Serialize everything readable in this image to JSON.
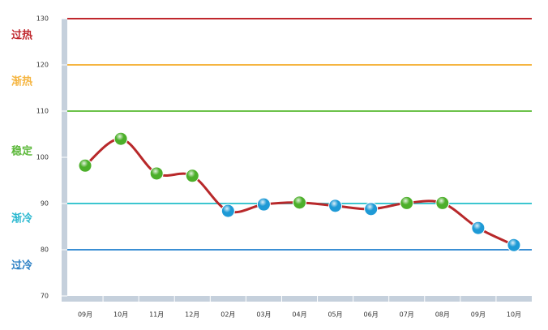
{
  "chart_data": {
    "type": "line",
    "categories": [
      "09月",
      "10月",
      "11月",
      "12月",
      "02月",
      "03月",
      "04月",
      "05月",
      "06月",
      "07月",
      "08月",
      "09月",
      "10月"
    ],
    "series": [
      {
        "color": "#b8282a",
        "values": [
          98.2,
          104,
          96.5,
          96,
          88.4,
          89.8,
          90.2,
          89.5,
          88.8,
          90.1,
          90.1,
          84.7,
          81
        ],
        "marker_colors": [
          "#4caf2a",
          "#4caf2a",
          "#4caf2a",
          "#4caf2a",
          "#1e9ad6",
          "#1e9ad6",
          "#4caf2a",
          "#1e9ad6",
          "#1e9ad6",
          "#4caf2a",
          "#4caf2a",
          "#1e9ad6",
          "#1e9ad6"
        ]
      }
    ],
    "ylim": [
      70,
      130
    ],
    "yticks": [
      70,
      80,
      90,
      100,
      110,
      120,
      130
    ],
    "reference_lines": [
      {
        "value": 130,
        "color": "#c0272d"
      },
      {
        "value": 120,
        "color": "#f5b541"
      },
      {
        "value": 110,
        "color": "#6cc24a"
      },
      {
        "value": 90,
        "color": "#3cc6d0"
      },
      {
        "value": 80,
        "color": "#3a8fd4"
      }
    ],
    "zones": [
      {
        "label": "过热",
        "color": "#c0272d"
      },
      {
        "label": "渐热",
        "color": "#f5b541"
      },
      {
        "label": "稳定",
        "color": "#5cb83a"
      },
      {
        "label": "渐冷",
        "color": "#2bb8d0"
      },
      {
        "label": "过冷",
        "color": "#2a7fc4"
      }
    ]
  }
}
